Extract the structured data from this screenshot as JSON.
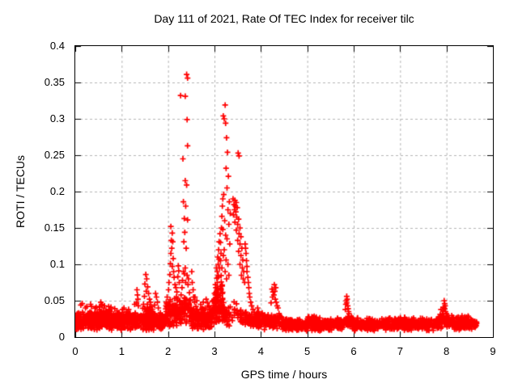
{
  "chart_data": {
    "type": "scatter",
    "title": "Day 111 of 2021, Rate Of TEC Index for receiver tilc",
    "xlabel": "GPS time / hours",
    "ylabel": "ROTI / TECUs",
    "xlim": [
      0,
      9
    ],
    "ylim": [
      0,
      0.4
    ],
    "xticks": [
      0,
      1,
      2,
      3,
      4,
      5,
      6,
      7,
      8,
      9
    ],
    "xtick_labels": [
      "0",
      "1",
      "2",
      "3",
      "4",
      "5",
      "6",
      "7",
      "8",
      "9"
    ],
    "yticks": [
      0,
      0.05,
      0.1,
      0.15,
      0.2,
      0.25,
      0.3,
      0.35,
      0.4
    ],
    "ytick_labels": [
      "0",
      "0.05",
      "0.1",
      "0.15",
      "0.2",
      "0.25",
      "0.3",
      "0.35",
      "0.4"
    ],
    "grid": true,
    "legend": "none",
    "x_data_range": [
      0,
      8.65
    ],
    "colors": {
      "marker": "#ff0000",
      "grid": "#b4b4b4",
      "axis": "#000000",
      "background": "#ffffff",
      "text": "#000000"
    },
    "marker": {
      "shape": "plus",
      "size": 7,
      "stroke": 1.7
    },
    "series": [
      {
        "name": "ROTI",
        "feature_points": [
          [
            0.12,
            0.044
          ],
          [
            0.15,
            0.046
          ],
          [
            0.22,
            0.04
          ],
          [
            0.25,
            0.042
          ],
          [
            0.33,
            0.045
          ],
          [
            0.35,
            0.042
          ],
          [
            0.45,
            0.041
          ],
          [
            0.52,
            0.042
          ],
          [
            0.55,
            0.048
          ],
          [
            0.57,
            0.045
          ],
          [
            0.58,
            0.044
          ],
          [
            0.62,
            0.04
          ],
          [
            0.63,
            0.043
          ],
          [
            0.72,
            0.042
          ],
          [
            0.77,
            0.041
          ],
          [
            0.85,
            0.039
          ],
          [
            0.9,
            0.036
          ],
          [
            1.02,
            0.038
          ],
          [
            1.05,
            0.04
          ],
          [
            1.1,
            0.035
          ],
          [
            1.15,
            0.038
          ],
          [
            1.28,
            0.045
          ],
          [
            1.32,
            0.047
          ],
          [
            1.33,
            0.065
          ],
          [
            1.34,
            0.058
          ],
          [
            1.35,
            0.052
          ],
          [
            1.36,
            0.043
          ],
          [
            1.47,
            0.045
          ],
          [
            1.49,
            0.056
          ],
          [
            1.5,
            0.073
          ],
          [
            1.52,
            0.086
          ],
          [
            1.53,
            0.063
          ],
          [
            1.54,
            0.08
          ],
          [
            1.56,
            0.069
          ],
          [
            1.58,
            0.06
          ],
          [
            1.6,
            0.052
          ],
          [
            1.62,
            0.048
          ],
          [
            1.64,
            0.042
          ],
          [
            1.71,
            0.044
          ],
          [
            1.73,
            0.06
          ],
          [
            1.75,
            0.055
          ],
          [
            1.77,
            0.048
          ],
          [
            1.79,
            0.04
          ],
          [
            1.96,
            0.048
          ],
          [
            1.98,
            0.055
          ],
          [
            2.01,
            0.065
          ],
          [
            2.02,
            0.075
          ],
          [
            2.04,
            0.086
          ],
          [
            2.05,
            0.101
          ],
          [
            2.06,
            0.115
          ],
          [
            2.06,
            0.152
          ],
          [
            2.07,
            0.133
          ],
          [
            2.08,
            0.122
          ],
          [
            2.09,
            0.143
          ],
          [
            2.09,
            0.097
          ],
          [
            2.1,
            0.131
          ],
          [
            2.11,
            0.108
          ],
          [
            2.12,
            0.09
          ],
          [
            2.13,
            0.082
          ],
          [
            2.15,
            0.072
          ],
          [
            2.17,
            0.068
          ],
          [
            2.18,
            0.055
          ],
          [
            2.19,
            0.062
          ],
          [
            2.2,
            0.05
          ],
          [
            2.21,
            0.083
          ],
          [
            2.22,
            0.098
          ],
          [
            2.23,
            0.091
          ],
          [
            2.24,
            0.075
          ],
          [
            2.27,
            0.332
          ],
          [
            2.28,
            0.058
          ],
          [
            2.3,
            0.068
          ],
          [
            2.31,
            0.078
          ],
          [
            2.32,
            0.245
          ],
          [
            2.33,
            0.186
          ],
          [
            2.33,
            0.09
          ],
          [
            2.34,
            0.131
          ],
          [
            2.35,
            0.163
          ],
          [
            2.35,
            0.087
          ],
          [
            2.36,
            0.144
          ],
          [
            2.37,
            0.331
          ],
          [
            2.37,
            0.215
          ],
          [
            2.37,
            0.095
          ],
          [
            2.38,
            0.18
          ],
          [
            2.38,
            0.075
          ],
          [
            2.39,
            0.122
          ],
          [
            2.4,
            0.361
          ],
          [
            2.4,
            0.209
          ],
          [
            2.41,
            0.299
          ],
          [
            2.41,
            0.085
          ],
          [
            2.42,
            0.356
          ],
          [
            2.42,
            0.263
          ],
          [
            2.42,
            0.161
          ],
          [
            2.43,
            0.072
          ],
          [
            2.44,
            0.08
          ],
          [
            2.46,
            0.061
          ],
          [
            2.48,
            0.051
          ],
          [
            2.51,
            0.09
          ],
          [
            2.52,
            0.075
          ],
          [
            2.54,
            0.065
          ],
          [
            2.55,
            0.055
          ],
          [
            2.57,
            0.048
          ],
          [
            2.58,
            0.055
          ],
          [
            2.6,
            0.042
          ],
          [
            2.62,
            0.05
          ],
          [
            2.63,
            0.038
          ],
          [
            2.66,
            0.034
          ],
          [
            2.7,
            0.045
          ],
          [
            2.73,
            0.04
          ],
          [
            2.76,
            0.048
          ],
          [
            2.8,
            0.04
          ],
          [
            2.82,
            0.052
          ],
          [
            2.85,
            0.047
          ],
          [
            2.88,
            0.043
          ],
          [
            2.9,
            0.038
          ],
          [
            2.97,
            0.05
          ],
          [
            3.0,
            0.06
          ],
          [
            3.02,
            0.072
          ],
          [
            3.02,
            0.058
          ],
          [
            3.03,
            0.068
          ],
          [
            3.04,
            0.095
          ],
          [
            3.05,
            0.081
          ],
          [
            3.06,
            0.09
          ],
          [
            3.06,
            0.075
          ],
          [
            3.07,
            0.11
          ],
          [
            3.08,
            0.1
          ],
          [
            3.08,
            0.085
          ],
          [
            3.09,
            0.12
          ],
          [
            3.1,
            0.131
          ],
          [
            3.1,
            0.107
          ],
          [
            3.11,
            0.095
          ],
          [
            3.12,
            0.142
          ],
          [
            3.13,
            0.13
          ],
          [
            3.13,
            0.105
          ],
          [
            3.14,
            0.115
          ],
          [
            3.15,
            0.15
          ],
          [
            3.16,
            0.166
          ],
          [
            3.16,
            0.095
          ],
          [
            3.17,
            0.18
          ],
          [
            3.18,
            0.19
          ],
          [
            3.18,
            0.148
          ],
          [
            3.19,
            0.304
          ],
          [
            3.19,
            0.112
          ],
          [
            3.2,
            0.196
          ],
          [
            3.21,
            0.3
          ],
          [
            3.21,
            0.12
          ],
          [
            3.22,
            0.16
          ],
          [
            3.23,
            0.319
          ],
          [
            3.23,
            0.09
          ],
          [
            3.24,
            0.294
          ],
          [
            3.24,
            0.14
          ],
          [
            3.25,
            0.232
          ],
          [
            3.25,
            0.106
          ],
          [
            3.26,
            0.274
          ],
          [
            3.26,
            0.08
          ],
          [
            3.27,
            0.205
          ],
          [
            3.27,
            0.135
          ],
          [
            3.28,
            0.254
          ],
          [
            3.29,
            0.175
          ],
          [
            3.29,
            0.1
          ],
          [
            3.3,
            0.221
          ],
          [
            3.31,
            0.155
          ],
          [
            3.31,
            0.085
          ],
          [
            3.32,
            0.186
          ],
          [
            3.33,
            0.128
          ],
          [
            3.34,
            0.17
          ],
          [
            3.4,
            0.19
          ],
          [
            3.41,
            0.168
          ],
          [
            3.42,
            0.182
          ],
          [
            3.43,
            0.175
          ],
          [
            3.44,
            0.188
          ],
          [
            3.44,
            0.158
          ],
          [
            3.45,
            0.18
          ],
          [
            3.46,
            0.172
          ],
          [
            3.47,
            0.185
          ],
          [
            3.47,
            0.147
          ],
          [
            3.48,
            0.165
          ],
          [
            3.49,
            0.178
          ],
          [
            3.5,
            0.155
          ],
          [
            3.5,
            0.133
          ],
          [
            3.51,
            0.253
          ],
          [
            3.52,
            0.162
          ],
          [
            3.52,
            0.118
          ],
          [
            3.53,
            0.249
          ],
          [
            3.53,
            0.142
          ],
          [
            3.55,
            0.15
          ],
          [
            3.55,
            0.128
          ],
          [
            3.55,
            0.1
          ],
          [
            3.57,
            0.138
          ],
          [
            3.57,
            0.112
          ],
          [
            3.58,
            0.085
          ],
          [
            3.59,
            0.122
          ],
          [
            3.6,
            0.095
          ],
          [
            3.61,
            0.106
          ],
          [
            3.62,
            0.08
          ],
          [
            3.63,
            0.09
          ],
          [
            3.65,
            0.075
          ],
          [
            3.66,
            0.128
          ],
          [
            3.67,
            0.122
          ],
          [
            3.68,
            0.115
          ],
          [
            3.69,
            0.105
          ],
          [
            3.7,
            0.097
          ],
          [
            3.7,
            0.09
          ],
          [
            3.72,
            0.082
          ],
          [
            3.73,
            0.075
          ],
          [
            3.74,
            0.068
          ],
          [
            3.75,
            0.06
          ],
          [
            3.76,
            0.055
          ],
          [
            3.78,
            0.048
          ],
          [
            3.8,
            0.043
          ],
          [
            3.83,
            0.038
          ],
          [
            3.86,
            0.034
          ],
          [
            3.9,
            0.031
          ],
          [
            3.93,
            0.04
          ],
          [
            3.95,
            0.035
          ],
          [
            3.97,
            0.03
          ],
          [
            4.22,
            0.047
          ],
          [
            4.24,
            0.066
          ],
          [
            4.25,
            0.055
          ],
          [
            4.26,
            0.062
          ],
          [
            4.28,
            0.058
          ],
          [
            4.29,
            0.072
          ],
          [
            4.3,
            0.063
          ],
          [
            4.31,
            0.052
          ],
          [
            4.32,
            0.068
          ],
          [
            4.33,
            0.048
          ],
          [
            4.35,
            0.043
          ],
          [
            4.37,
            0.04
          ],
          [
            5.82,
            0.038
          ],
          [
            5.83,
            0.045
          ],
          [
            5.84,
            0.05
          ],
          [
            5.85,
            0.056
          ],
          [
            5.85,
            0.047
          ],
          [
            5.86,
            0.052
          ],
          [
            5.87,
            0.043
          ],
          [
            5.88,
            0.039
          ],
          [
            5.89,
            0.035
          ],
          [
            5.9,
            0.032
          ],
          [
            7.88,
            0.038
          ],
          [
            7.91,
            0.032
          ],
          [
            7.93,
            0.036
          ],
          [
            7.94,
            0.041
          ],
          [
            7.95,
            0.05
          ],
          [
            7.96,
            0.046
          ],
          [
            7.96,
            0.039
          ],
          [
            7.97,
            0.043
          ],
          [
            7.98,
            0.035
          ],
          [
            8.0,
            0.032
          ],
          [
            8.02,
            0.03
          ]
        ],
        "noise_bands": [
          [
            0.0,
            1.25,
            480,
            0.009,
            0.036
          ],
          [
            0.3,
            0.75,
            60,
            0.018,
            0.042
          ],
          [
            1.25,
            1.95,
            260,
            0.009,
            0.034
          ],
          [
            1.45,
            1.68,
            28,
            0.024,
            0.048
          ],
          [
            1.95,
            2.3,
            110,
            0.013,
            0.055
          ],
          [
            2.3,
            2.5,
            45,
            0.018,
            0.06
          ],
          [
            2.5,
            2.95,
            150,
            0.008,
            0.042
          ],
          [
            2.95,
            3.2,
            75,
            0.018,
            0.058
          ],
          [
            3.0,
            3.18,
            26,
            0.04,
            0.088
          ],
          [
            3.2,
            3.33,
            30,
            0.015,
            0.045
          ],
          [
            3.33,
            3.58,
            18,
            0.02,
            0.05
          ],
          [
            3.55,
            3.72,
            25,
            0.014,
            0.04
          ],
          [
            3.7,
            4.1,
            100,
            0.01,
            0.036
          ],
          [
            4.1,
            4.45,
            90,
            0.01,
            0.034
          ],
          [
            4.45,
            5.8,
            360,
            0.008,
            0.027
          ],
          [
            4.95,
            5.2,
            28,
            0.014,
            0.031
          ],
          [
            5.8,
            6.0,
            50,
            0.011,
            0.031
          ],
          [
            5.95,
            7.85,
            520,
            0.008,
            0.027
          ],
          [
            6.95,
            7.15,
            25,
            0.013,
            0.03
          ],
          [
            7.85,
            8.15,
            80,
            0.011,
            0.033
          ],
          [
            8.15,
            8.65,
            120,
            0.009,
            0.028
          ],
          [
            8.25,
            8.5,
            22,
            0.013,
            0.031
          ]
        ]
      }
    ]
  }
}
